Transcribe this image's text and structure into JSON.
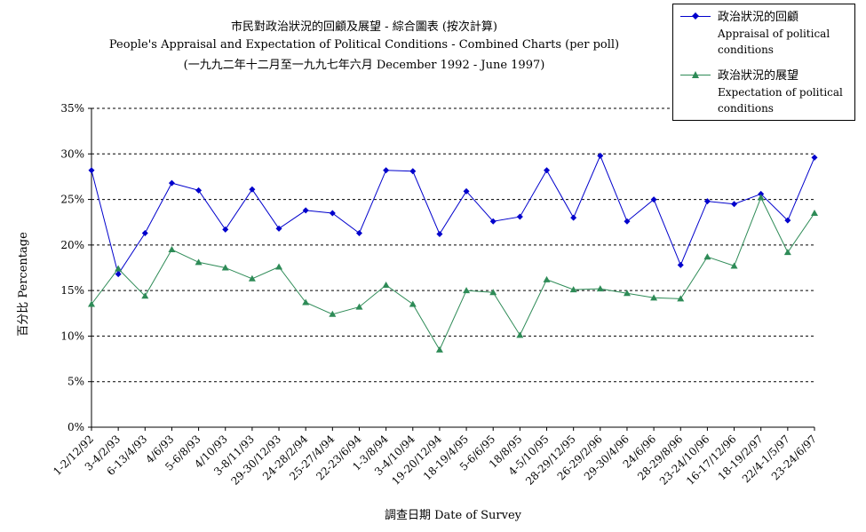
{
  "title": {
    "line1": "市民對政治狀況的回顧及展望 - 綜合圖表 (按次計算)",
    "line2": "People's Appraisal and Expectation of Political Conditions - Combined Charts  (per poll)",
    "line3": "(一九九二年十二月至一九九七年六月 December 1992 - June 1997)"
  },
  "chart_data": {
    "type": "line",
    "ylabel": "百分比 Percentage",
    "xlabel": "調查日期 Date of Survey",
    "ylim": [
      0,
      35
    ],
    "yticks": [
      "0%",
      "5%",
      "10%",
      "15%",
      "20%",
      "25%",
      "30%",
      "35%"
    ],
    "grid": "horizontal dashed",
    "legend": "top-right",
    "categories": [
      "1-2/12/92",
      "3-4/2/93",
      "6-13/4/93",
      "4/6/93",
      "5-6/8/93",
      "4/10/93",
      "3-8/11/93",
      "29-30/12/93",
      "24-28/2/94",
      "25-27/4/94",
      "22-23/6/94",
      "1-3/8/94",
      "3-4/10/94",
      "19-20/12/94",
      "18-19/4/95",
      "5-6/6/95",
      "18/8/95",
      "4-5/10/95",
      "28-29/12/95",
      "26-29/2/96",
      "29-30/4/96",
      "24/6/96",
      "28-29/8/96",
      "23-24/10/96",
      "16-17/12/96",
      "18-19/2/97",
      "22/4-1/5/97",
      "23-24/6/97"
    ],
    "series": [
      {
        "name": "政治狀況的回顧",
        "name_en": "Appraisal of political conditions",
        "color": "#0000cc",
        "marker": "diamond",
        "values": [
          28.2,
          16.8,
          21.3,
          26.8,
          26.0,
          21.7,
          26.1,
          21.8,
          23.8,
          23.5,
          21.3,
          28.2,
          28.1,
          21.2,
          25.9,
          22.6,
          23.1,
          28.2,
          23.0,
          29.8,
          22.6,
          25.0,
          17.8,
          24.8,
          24.5,
          25.6,
          22.7,
          29.6
        ]
      },
      {
        "name": "政治狀況的展望",
        "name_en": "Expectation of political conditions",
        "color": "#2e8b57",
        "marker": "triangle",
        "values": [
          13.5,
          17.4,
          14.4,
          19.5,
          18.1,
          17.5,
          16.3,
          17.6,
          13.7,
          12.4,
          13.2,
          15.6,
          13.5,
          8.5,
          15.0,
          14.8,
          10.1,
          16.2,
          15.1,
          15.2,
          14.7,
          14.2,
          14.1,
          18.7,
          17.7,
          25.2,
          19.2,
          23.5
        ]
      }
    ]
  }
}
